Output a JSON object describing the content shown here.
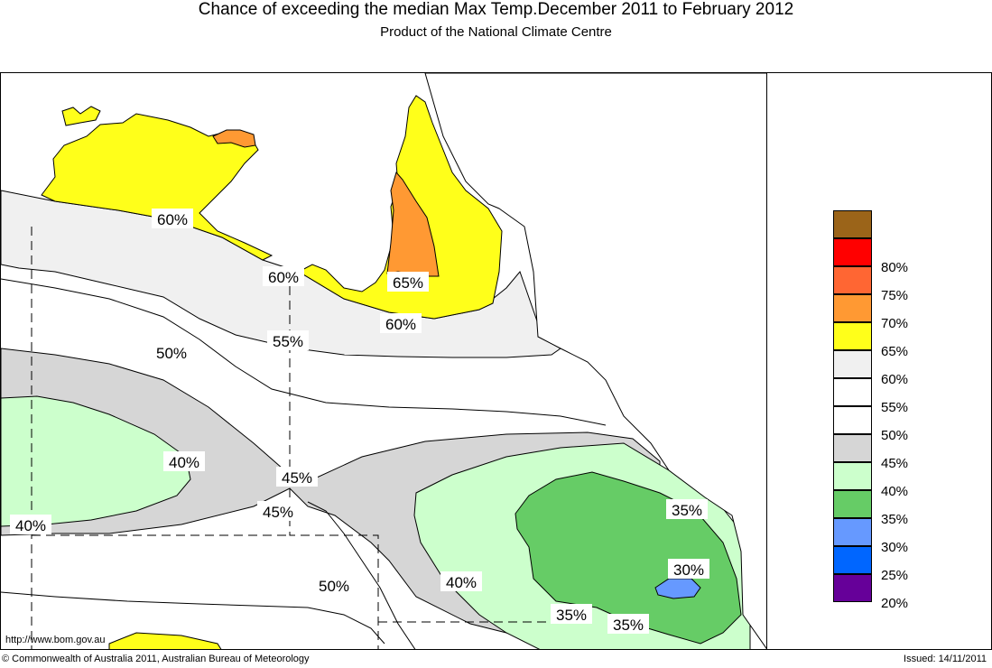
{
  "header": {
    "title": "Chance of exceeding the median Max Temp.December 2011 to February 2012",
    "subtitle": "Product of the National Climate Centre"
  },
  "map": {
    "contour_labels": [
      "60%",
      "60%",
      "65%",
      "60%",
      "55%",
      "50%",
      "40%",
      "45%",
      "45%",
      "40%",
      "50%",
      "40%",
      "35%",
      "30%",
      "35%",
      "35%"
    ],
    "url": "http://www.bom.gov.au"
  },
  "legend": {
    "items": [
      {
        "label": "",
        "color": "#9b6419"
      },
      {
        "label": "80%",
        "color": "#ff0000"
      },
      {
        "label": "75%",
        "color": "#ff6633"
      },
      {
        "label": "70%",
        "color": "#ff9933"
      },
      {
        "label": "65%",
        "color": "#ffff1a"
      },
      {
        "label": "60%",
        "color": "#f0f0f0"
      },
      {
        "label": "55%",
        "color": "#ffffff"
      },
      {
        "label": "50%",
        "color": "#ffffff"
      },
      {
        "label": "45%",
        "color": "#d6d6d6"
      },
      {
        "label": "40%",
        "color": "#ccffcc"
      },
      {
        "label": "35%",
        "color": "#66cc66"
      },
      {
        "label": "30%",
        "color": "#6699ff"
      },
      {
        "label": "25%",
        "color": "#0066ff"
      },
      {
        "label": "20%",
        "color": "#660099"
      }
    ]
  },
  "footer": {
    "copyright": "© Commonwealth of Australia 2011, Australian Bureau of Meteorology",
    "issued": "Issued: 14/11/2011"
  }
}
